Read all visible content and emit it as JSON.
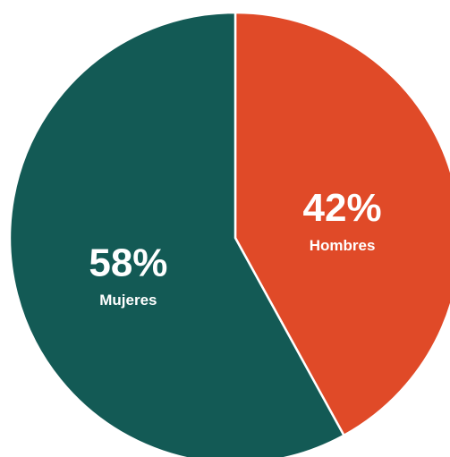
{
  "chart_data": {
    "type": "pie",
    "categories": [
      "Hombres",
      "Mujeres"
    ],
    "values": [
      42,
      58
    ],
    "value_labels": [
      "42%",
      "58%"
    ],
    "colors": [
      "#e04a28",
      "#135a55"
    ]
  }
}
